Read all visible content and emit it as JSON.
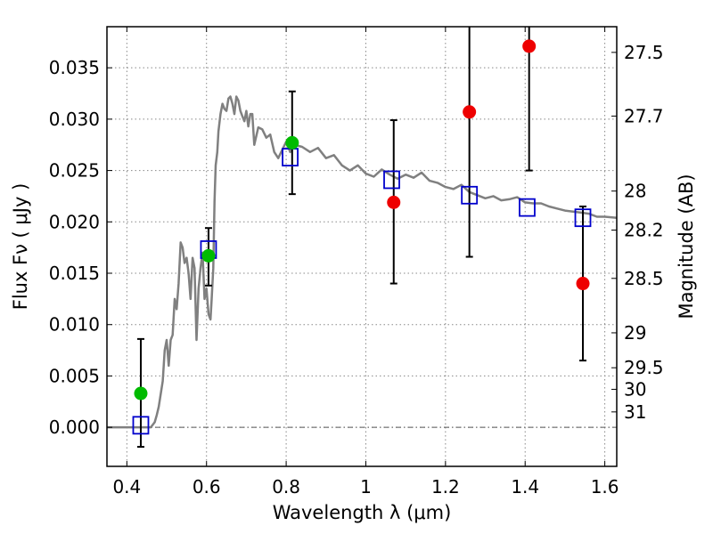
{
  "chart_data": {
    "type": "scatter",
    "xlabel": "Wavelength  λ (μm)",
    "ylabel": "Flux  Fν  ( μJy )",
    "ylabel_right": "Magnitude (AB)",
    "xlim": [
      0.35,
      1.63
    ],
    "ylim": [
      -0.0038,
      0.039
    ],
    "grid": true,
    "x_ticks": [
      0.4,
      0.6,
      0.8,
      1.0,
      1.2,
      1.4,
      1.6
    ],
    "x_tick_labels": [
      "0.4",
      "0.6",
      "0.8",
      "1",
      "1.2",
      "1.4",
      "1.6"
    ],
    "y_ticks": [
      0.0,
      0.005,
      0.01,
      0.015,
      0.02,
      0.025,
      0.03,
      0.035
    ],
    "y_tick_labels": [
      "0.000",
      "0.005",
      "0.010",
      "0.015",
      "0.020",
      "0.025",
      "0.030",
      "0.035"
    ],
    "right_ticks": [
      {
        "label": "27.5",
        "flux": 0.0365
      },
      {
        "label": "27.7",
        "flux": 0.0303
      },
      {
        "label": "28",
        "flux": 0.023
      },
      {
        "label": "28.2",
        "flux": 0.0192
      },
      {
        "label": "28.5",
        "flux": 0.0145
      },
      {
        "label": "29",
        "flux": 0.0092
      },
      {
        "label": "29.5",
        "flux": 0.0058
      },
      {
        "label": "30",
        "flux": 0.0037
      },
      {
        "label": "31",
        "flux": 0.0015
      }
    ],
    "zero_line": 0.0,
    "series": [
      {
        "kind": "line",
        "color": "#808080",
        "points": [
          [
            0.35,
            0.0
          ],
          [
            0.43,
            0.0
          ],
          [
            0.46,
            0.0
          ],
          [
            0.47,
            0.0005
          ],
          [
            0.475,
            0.0012
          ],
          [
            0.48,
            0.002
          ],
          [
            0.49,
            0.0045
          ],
          [
            0.495,
            0.0075
          ],
          [
            0.5,
            0.0085
          ],
          [
            0.505,
            0.006
          ],
          [
            0.51,
            0.0085
          ],
          [
            0.515,
            0.009
          ],
          [
            0.52,
            0.0125
          ],
          [
            0.525,
            0.0115
          ],
          [
            0.53,
            0.014
          ],
          [
            0.535,
            0.018
          ],
          [
            0.54,
            0.0175
          ],
          [
            0.545,
            0.016
          ],
          [
            0.55,
            0.0165
          ],
          [
            0.555,
            0.015
          ],
          [
            0.56,
            0.0125
          ],
          [
            0.565,
            0.0165
          ],
          [
            0.57,
            0.0155
          ],
          [
            0.575,
            0.0085
          ],
          [
            0.58,
            0.0135
          ],
          [
            0.585,
            0.0155
          ],
          [
            0.59,
            0.017
          ],
          [
            0.595,
            0.0125
          ],
          [
            0.6,
            0.0135
          ],
          [
            0.605,
            0.011
          ],
          [
            0.61,
            0.0105
          ],
          [
            0.613,
            0.0125
          ],
          [
            0.617,
            0.0155
          ],
          [
            0.62,
            0.022
          ],
          [
            0.623,
            0.0255
          ],
          [
            0.627,
            0.0268
          ],
          [
            0.63,
            0.0288
          ],
          [
            0.635,
            0.0305
          ],
          [
            0.64,
            0.0315
          ],
          [
            0.645,
            0.031
          ],
          [
            0.65,
            0.0308
          ],
          [
            0.655,
            0.032
          ],
          [
            0.66,
            0.0322
          ],
          [
            0.665,
            0.0315
          ],
          [
            0.67,
            0.0305
          ],
          [
            0.675,
            0.0322
          ],
          [
            0.68,
            0.0318
          ],
          [
            0.685,
            0.0308
          ],
          [
            0.69,
            0.0303
          ],
          [
            0.695,
            0.0298
          ],
          [
            0.7,
            0.0308
          ],
          [
            0.705,
            0.0293
          ],
          [
            0.71,
            0.0305
          ],
          [
            0.715,
            0.0305
          ],
          [
            0.72,
            0.0275
          ],
          [
            0.73,
            0.0292
          ],
          [
            0.74,
            0.029
          ],
          [
            0.75,
            0.0282
          ],
          [
            0.76,
            0.0285
          ],
          [
            0.77,
            0.0268
          ],
          [
            0.78,
            0.0262
          ],
          [
            0.79,
            0.027
          ],
          [
            0.8,
            0.0278
          ],
          [
            0.81,
            0.0268
          ],
          [
            0.82,
            0.0275
          ],
          [
            0.84,
            0.0273
          ],
          [
            0.86,
            0.0268
          ],
          [
            0.88,
            0.0272
          ],
          [
            0.9,
            0.0262
          ],
          [
            0.92,
            0.0265
          ],
          [
            0.94,
            0.0255
          ],
          [
            0.96,
            0.025
          ],
          [
            0.98,
            0.0255
          ],
          [
            1.0,
            0.0247
          ],
          [
            1.02,
            0.0244
          ],
          [
            1.04,
            0.0251
          ],
          [
            1.06,
            0.0246
          ],
          [
            1.08,
            0.0242
          ],
          [
            1.1,
            0.0246
          ],
          [
            1.12,
            0.0243
          ],
          [
            1.14,
            0.0248
          ],
          [
            1.16,
            0.024
          ],
          [
            1.18,
            0.0238
          ],
          [
            1.2,
            0.0234
          ],
          [
            1.22,
            0.0232
          ],
          [
            1.24,
            0.0236
          ],
          [
            1.26,
            0.0229
          ],
          [
            1.28,
            0.0226
          ],
          [
            1.3,
            0.0223
          ],
          [
            1.32,
            0.0225
          ],
          [
            1.34,
            0.0221
          ],
          [
            1.36,
            0.0222
          ],
          [
            1.38,
            0.0224
          ],
          [
            1.4,
            0.0219
          ],
          [
            1.42,
            0.0218
          ],
          [
            1.44,
            0.0218
          ],
          [
            1.46,
            0.0215
          ],
          [
            1.48,
            0.0213
          ],
          [
            1.5,
            0.0211
          ],
          [
            1.52,
            0.021
          ],
          [
            1.54,
            0.0209
          ],
          [
            1.56,
            0.0208
          ],
          [
            1.58,
            0.0205
          ],
          [
            1.6,
            0.0205
          ],
          [
            1.63,
            0.0204
          ]
        ]
      },
      {
        "kind": "squares",
        "color": "#0000cc",
        "points": [
          [
            0.435,
            0.0002
          ],
          [
            0.605,
            0.0173
          ],
          [
            0.81,
            0.0263
          ],
          [
            1.065,
            0.0241
          ],
          [
            1.26,
            0.0226
          ],
          [
            1.405,
            0.0214
          ],
          [
            1.545,
            0.0204
          ]
        ]
      },
      {
        "kind": "circles",
        "color": "#00bb00",
        "points": [
          {
            "x": 0.435,
            "y": 0.0033,
            "err_lo": -0.0019,
            "err_hi": 0.0086
          },
          {
            "x": 0.605,
            "y": 0.0167,
            "err_lo": 0.0138,
            "err_hi": 0.0194
          },
          {
            "x": 0.815,
            "y": 0.0277,
            "err_lo": 0.0227,
            "err_hi": 0.0327
          }
        ]
      },
      {
        "kind": "circles",
        "color": "#ee0000",
        "points": [
          {
            "x": 1.07,
            "y": 0.0219,
            "err_lo": 0.014,
            "err_hi": 0.0299
          },
          {
            "x": 1.26,
            "y": 0.0307,
            "err_lo": 0.0166,
            "err_hi": 0.039
          },
          {
            "x": 1.41,
            "y": 0.0371,
            "err_lo": 0.025,
            "err_hi": 0.039
          },
          {
            "x": 1.545,
            "y": 0.014,
            "err_lo": 0.0065,
            "err_hi": 0.0215
          }
        ]
      }
    ]
  }
}
